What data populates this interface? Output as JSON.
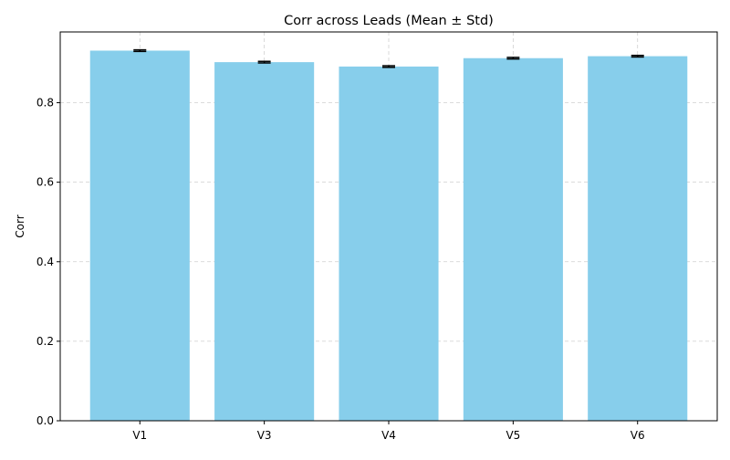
{
  "chart_data": {
    "type": "bar",
    "title": "Corr across Leads (Mean ± Std)",
    "xlabel": "",
    "ylabel": "Corr",
    "categories": [
      "V1",
      "V3",
      "V4",
      "V5",
      "V6"
    ],
    "values": [
      0.931,
      0.902,
      0.891,
      0.912,
      0.917
    ],
    "errors": [
      0.002,
      0.002,
      0.002,
      0.002,
      0.002
    ],
    "ylim": [
      0,
      0.978
    ],
    "yticks": [
      0.0,
      0.2,
      0.4,
      0.6,
      0.8
    ],
    "ytick_labels": [
      "0.0",
      "0.2",
      "0.4",
      "0.6",
      "0.8"
    ],
    "grid": true,
    "legend": "none",
    "colors": {
      "bar": "#87ceeb",
      "error_bar": "#000000",
      "grid": "#b0b0b0",
      "axis": "#000000"
    }
  }
}
